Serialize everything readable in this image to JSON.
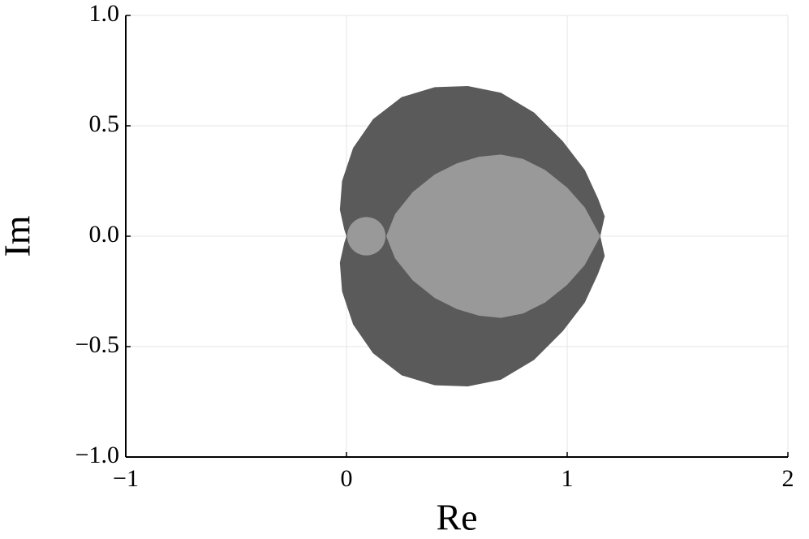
{
  "chart_data": {
    "type": "area",
    "xlabel": "Re",
    "ylabel": "Im",
    "xlim": [
      -1,
      2
    ],
    "ylim": [
      -1,
      1
    ],
    "xticks": [
      {
        "value": -1,
        "label": "−1"
      },
      0,
      1,
      2
    ],
    "yticks": [
      {
        "value": -1,
        "label": "−1.0"
      },
      {
        "value": -0.5,
        "label": "−0.5"
      },
      {
        "value": 0,
        "label": "0.0"
      },
      0.5,
      {
        "value": 1,
        "label": "1.0"
      }
    ],
    "grid": true,
    "series": [
      {
        "color": "#5a5a5a",
        "x": [
          -0.01,
          -0.03,
          -0.02,
          0.03,
          0.12,
          0.25,
          0.4,
          0.55,
          0.7,
          0.85,
          0.98,
          1.08,
          1.14,
          1.17,
          1.15,
          1.17,
          1.14,
          1.08,
          0.98,
          0.85,
          0.7,
          0.55,
          0.4,
          0.25,
          0.12,
          0.03,
          -0.02,
          -0.03,
          -0.01,
          0
        ],
        "y": [
          0.03,
          0.12,
          0.25,
          0.4,
          0.53,
          0.63,
          0.675,
          0.68,
          0.65,
          0.56,
          0.43,
          0.3,
          0.17,
          0.09,
          0,
          -0.09,
          -0.17,
          -0.3,
          -0.43,
          -0.56,
          -0.65,
          -0.68,
          -0.675,
          -0.63,
          -0.53,
          -0.4,
          -0.25,
          -0.12,
          -0.03,
          0
        ]
      },
      {
        "color": "#999999",
        "x": [
          0.18,
          0.22,
          0.3,
          0.4,
          0.5,
          0.6,
          0.7,
          0.8,
          0.9,
          1.0,
          1.08,
          1.15,
          1.08,
          1.0,
          0.9,
          0.8,
          0.7,
          0.6,
          0.5,
          0.4,
          0.3,
          0.22
        ],
        "y": [
          0,
          0.1,
          0.2,
          0.28,
          0.33,
          0.36,
          0.37,
          0.35,
          0.3,
          0.22,
          0.13,
          0,
          -0.13,
          -0.22,
          -0.3,
          -0.35,
          -0.37,
          -0.36,
          -0.33,
          -0.28,
          -0.2,
          -0.1
        ]
      },
      {
        "color": "#999999",
        "x": [
          0.09
        ],
        "y": [
          0
        ],
        "r": 0.087
      }
    ]
  }
}
